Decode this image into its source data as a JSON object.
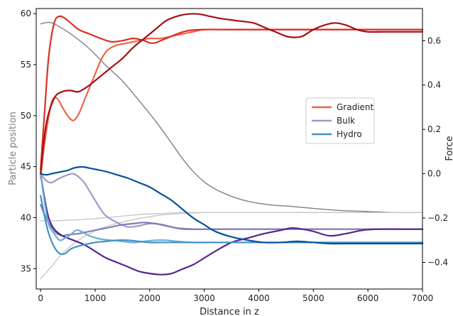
{
  "chart_data": {
    "type": "line",
    "xlabel": "Distance in z",
    "ylabel_left": "Particle position",
    "ylabel_right": "Force",
    "xlim": [
      -80,
      7000
    ],
    "ylim_left": [
      33,
      60.5
    ],
    "ylim_right": [
      -0.52,
      0.745
    ],
    "x_ticks": [
      0,
      1000,
      2000,
      3000,
      4000,
      5000,
      6000,
      7000
    ],
    "y_ticks_left": [
      35,
      40,
      45,
      50,
      55,
      60
    ],
    "y_ticks_right": [
      -0.4,
      -0.2,
      0.0,
      0.2,
      0.4,
      0.6
    ],
    "legend": {
      "position": "center-right",
      "entries": [
        {
          "label": "Gradient",
          "color": "#ef6548"
        },
        {
          "label": "Bulk",
          "color": "#9e9ac8"
        },
        {
          "label": "Hydro",
          "color": "#4292c6"
        }
      ]
    },
    "series": [
      {
        "axis": "left",
        "color": "#7f7f7f",
        "width": 1.4,
        "x": [
          0,
          200,
          500,
          800,
          1000,
          1200,
          1500,
          1800,
          2000,
          2200,
          2400,
          2600,
          2800,
          3000,
          3200,
          3400,
          3600,
          3800,
          4000,
          4300,
          4600,
          5000,
          5500,
          6000,
          6500,
          7000
        ],
        "y": [
          59.0,
          59.1,
          58.2,
          57.0,
          56.0,
          54.9,
          53.4,
          51.5,
          50.2,
          48.8,
          47.3,
          45.8,
          44.5,
          43.5,
          42.8,
          42.3,
          41.9,
          41.6,
          41.4,
          41.2,
          41.1,
          40.9,
          40.7,
          40.6,
          40.5,
          40.5
        ]
      },
      {
        "axis": "left",
        "color": "#c8c8c8",
        "width": 1.4,
        "x": [
          0,
          200,
          400,
          700,
          1000,
          1300,
          1700,
          2000,
          2300,
          2600,
          3000,
          3500,
          4000,
          5000,
          6000,
          7000
        ],
        "y": [
          34.0,
          35.2,
          36.5,
          37.8,
          38.7,
          39.3,
          39.8,
          40.1,
          40.3,
          40.4,
          40.5,
          40.5,
          40.5,
          40.5,
          40.5,
          40.5
        ]
      },
      {
        "axis": "left",
        "color": "#c8c8c8",
        "width": 1.4,
        "x": [
          0,
          300,
          700,
          1000,
          1400,
          1800,
          2200,
          2600,
          3000,
          4000,
          5000,
          6000,
          7000
        ],
        "y": [
          39.7,
          39.7,
          39.8,
          39.9,
          40.1,
          40.3,
          40.4,
          40.5,
          40.5,
          40.5,
          40.5,
          40.5,
          40.5
        ]
      },
      {
        "axis": "right",
        "color": "#ef6548",
        "width": 2.2,
        "x": [
          0,
          80,
          200,
          300,
          400,
          500,
          600,
          700,
          800,
          900,
          1000,
          1100,
          1200,
          1300,
          1400,
          1600,
          1800,
          2000,
          2200,
          2400,
          2600,
          2800,
          3000,
          3500,
          4000,
          5000,
          6000,
          7000
        ],
        "y": [
          -0.02,
          0.15,
          0.32,
          0.34,
          0.3,
          0.26,
          0.24,
          0.27,
          0.33,
          0.39,
          0.45,
          0.51,
          0.55,
          0.57,
          0.58,
          0.59,
          0.6,
          0.61,
          0.61,
          0.62,
          0.63,
          0.64,
          0.65,
          0.65,
          0.65,
          0.65,
          0.65,
          0.65
        ]
      },
      {
        "axis": "right",
        "color": "#de2d26",
        "width": 2.2,
        "x": [
          0,
          80,
          150,
          250,
          350,
          450,
          550,
          700,
          900,
          1100,
          1300,
          1500,
          1700,
          1900,
          2000,
          2100,
          2200,
          2300,
          2500,
          2700,
          3000,
          3500,
          4000,
          5000,
          6000,
          7000
        ],
        "y": [
          0.02,
          0.3,
          0.53,
          0.68,
          0.71,
          0.7,
          0.68,
          0.65,
          0.63,
          0.61,
          0.595,
          0.6,
          0.61,
          0.6,
          0.59,
          0.59,
          0.6,
          0.61,
          0.63,
          0.645,
          0.65,
          0.65,
          0.65,
          0.65,
          0.65,
          0.65
        ]
      },
      {
        "axis": "right",
        "color": "#a50f15",
        "width": 2.2,
        "x": [
          0,
          100,
          250,
          400,
          550,
          700,
          900,
          1100,
          1300,
          1500,
          1700,
          1900,
          2100,
          2300,
          2500,
          2700,
          2900,
          3100,
          3300,
          3600,
          3900,
          4100,
          4300,
          4500,
          4650,
          4800,
          5000,
          5200,
          5400,
          5600,
          5800,
          6000,
          6300,
          6600,
          7000
        ],
        "y": [
          0.0,
          0.22,
          0.34,
          0.37,
          0.375,
          0.37,
          0.4,
          0.44,
          0.48,
          0.52,
          0.57,
          0.61,
          0.65,
          0.69,
          0.71,
          0.72,
          0.72,
          0.71,
          0.7,
          0.69,
          0.68,
          0.66,
          0.64,
          0.62,
          0.615,
          0.62,
          0.65,
          0.67,
          0.68,
          0.67,
          0.65,
          0.64,
          0.64,
          0.64,
          0.64
        ]
      },
      {
        "axis": "right",
        "color": "#9e9ac8",
        "width": 2.2,
        "x": [
          0,
          100,
          200,
          350,
          500,
          600,
          700,
          800,
          900,
          1000,
          1100,
          1200,
          1400,
          1600,
          1800,
          2000,
          2200,
          2400,
          2600,
          3000,
          4000,
          5000,
          6000,
          7000
        ],
        "y": [
          0.0,
          -0.03,
          -0.04,
          -0.02,
          -0.005,
          0.0,
          -0.015,
          -0.04,
          -0.08,
          -0.12,
          -0.16,
          -0.19,
          -0.22,
          -0.24,
          -0.235,
          -0.225,
          -0.228,
          -0.24,
          -0.25,
          -0.25,
          -0.25,
          -0.25,
          -0.25,
          -0.25
        ]
      },
      {
        "axis": "right",
        "color": "#807dba",
        "width": 2.2,
        "x": [
          0,
          100,
          200,
          300,
          400,
          500,
          700,
          900,
          1100,
          1300,
          1500,
          1700,
          1900,
          2100,
          2300,
          2500,
          2800,
          3500,
          4500,
          5500,
          6500,
          7000
        ],
        "y": [
          -0.14,
          -0.2,
          -0.24,
          -0.27,
          -0.28,
          -0.275,
          -0.27,
          -0.26,
          -0.25,
          -0.24,
          -0.23,
          -0.225,
          -0.22,
          -0.225,
          -0.235,
          -0.245,
          -0.25,
          -0.25,
          -0.25,
          -0.25,
          -0.25,
          -0.25
        ]
      },
      {
        "axis": "right",
        "color": "#54278f",
        "width": 2.2,
        "x": [
          0,
          80,
          150,
          250,
          400,
          600,
          800,
          1000,
          1200,
          1400,
          1600,
          1800,
          2000,
          2200,
          2400,
          2600,
          2800,
          3000,
          3200,
          3500,
          3800,
          4100,
          4400,
          4600,
          4800,
          5000,
          5300,
          5600,
          5900,
          6200,
          6600,
          7000
        ],
        "y": [
          0.0,
          -0.12,
          -0.2,
          -0.25,
          -0.28,
          -0.3,
          -0.32,
          -0.35,
          -0.38,
          -0.4,
          -0.42,
          -0.44,
          -0.45,
          -0.455,
          -0.45,
          -0.43,
          -0.41,
          -0.38,
          -0.35,
          -0.31,
          -0.29,
          -0.27,
          -0.255,
          -0.245,
          -0.25,
          -0.26,
          -0.28,
          -0.27,
          -0.255,
          -0.25,
          -0.25,
          -0.25
        ]
      },
      {
        "axis": "right",
        "color": "#6baed6",
        "width": 2.2,
        "x": [
          0,
          80,
          150,
          250,
          350,
          450,
          550,
          650,
          750,
          850,
          950,
          1100,
          1300,
          1500,
          1700,
          1900,
          2100,
          2300,
          2500,
          2800,
          3200,
          3600,
          4000,
          5000,
          6000,
          7000
        ],
        "y": [
          0.0,
          -0.14,
          -0.23,
          -0.27,
          -0.3,
          -0.29,
          -0.275,
          -0.255,
          -0.26,
          -0.275,
          -0.285,
          -0.295,
          -0.3,
          -0.305,
          -0.31,
          -0.305,
          -0.3,
          -0.3,
          -0.305,
          -0.31,
          -0.31,
          -0.31,
          -0.31,
          -0.31,
          -0.31,
          -0.31
        ]
      },
      {
        "axis": "right",
        "color": "#4292c6",
        "width": 2.2,
        "x": [
          0,
          80,
          150,
          250,
          350,
          450,
          550,
          650,
          800,
          1000,
          1200,
          1400,
          1600,
          1800,
          2000,
          2200,
          2500,
          3000,
          4000,
          5000,
          6000,
          7000
        ],
        "y": [
          -0.1,
          -0.2,
          -0.27,
          -0.33,
          -0.36,
          -0.36,
          -0.34,
          -0.33,
          -0.32,
          -0.31,
          -0.305,
          -0.3,
          -0.3,
          -0.305,
          -0.31,
          -0.31,
          -0.31,
          -0.31,
          -0.31,
          -0.31,
          -0.31,
          -0.31
        ]
      },
      {
        "axis": "right",
        "color": "#08519c",
        "width": 2.2,
        "x": [
          0,
          100,
          200,
          300,
          400,
          500,
          600,
          700,
          800,
          900,
          1000,
          1200,
          1400,
          1600,
          1800,
          2000,
          2200,
          2400,
          2600,
          2800,
          3000,
          3200,
          3500,
          3800,
          4100,
          4400,
          4700,
          5000,
          5300,
          5600,
          6000,
          6500,
          7000
        ],
        "y": [
          0.0,
          -0.005,
          0.0,
          0.005,
          0.01,
          0.015,
          0.025,
          0.03,
          0.03,
          0.025,
          0.02,
          0.01,
          -0.005,
          -0.02,
          -0.04,
          -0.06,
          -0.09,
          -0.12,
          -0.16,
          -0.2,
          -0.23,
          -0.26,
          -0.285,
          -0.3,
          -0.31,
          -0.31,
          -0.305,
          -0.31,
          -0.315,
          -0.315,
          -0.315,
          -0.315,
          -0.315
        ]
      }
    ]
  }
}
